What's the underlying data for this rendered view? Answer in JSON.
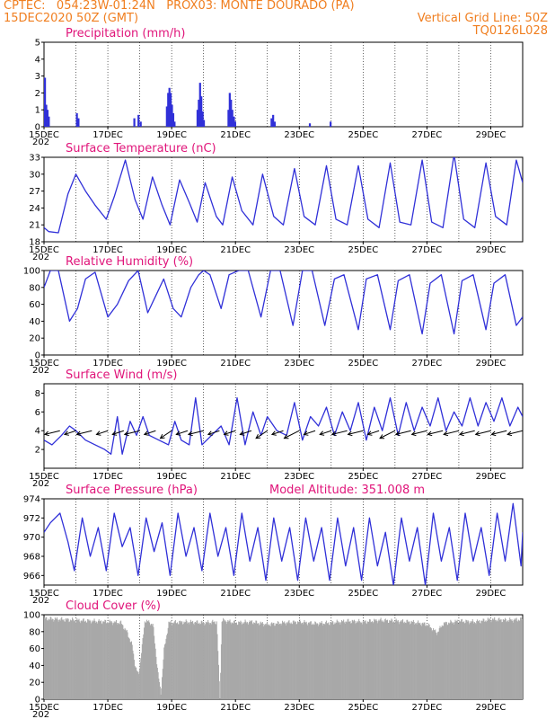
{
  "header": {
    "station": "CPTEC:   054:23W-01:24N   PROX03: MONTE DOURADO (PA)",
    "date": "15DEC2020 50Z (GMT)",
    "grid_line": "Vertical Grid Line: 50Z",
    "code": "TQ0126L028"
  },
  "x_axis": {
    "labels": [
      "15DEC",
      "17DEC",
      "19DEC",
      "21DEC",
      "23DEC",
      "25DEC",
      "27DEC",
      "29DEC"
    ],
    "year_fragment": "202"
  },
  "colors": {
    "header": "#f07e1f",
    "title": "#e0157a",
    "line": "#3030d8",
    "cloud": "#a8a8a8"
  },
  "chart_data": [
    {
      "type": "bar",
      "title": "Precipitation (mm/h)",
      "ylim": [
        0,
        5
      ],
      "yticks": [
        "0",
        "1",
        "2",
        "3",
        "4",
        "5"
      ],
      "x_range_days": [
        15,
        30
      ],
      "points": [
        [
          15.0,
          2.9
        ],
        [
          15.04,
          1.3
        ],
        [
          15.08,
          1.0
        ],
        [
          15.12,
          0.6
        ],
        [
          16.0,
          0.8
        ],
        [
          16.05,
          0.5
        ],
        [
          17.8,
          0.5
        ],
        [
          17.93,
          0.7
        ],
        [
          18.0,
          0.3
        ],
        [
          18.82,
          1.2
        ],
        [
          18.86,
          2.0
        ],
        [
          18.9,
          2.3
        ],
        [
          18.94,
          2.0
        ],
        [
          18.98,
          1.3
        ],
        [
          19.02,
          0.8
        ],
        [
          19.06,
          0.3
        ],
        [
          19.78,
          1.0
        ],
        [
          19.82,
          1.6
        ],
        [
          19.86,
          2.6
        ],
        [
          19.9,
          1.8
        ],
        [
          19.94,
          0.9
        ],
        [
          19.98,
          0.4
        ],
        [
          20.75,
          1.0
        ],
        [
          20.79,
          2.0
        ],
        [
          20.83,
          1.6
        ],
        [
          20.87,
          1.0
        ],
        [
          20.92,
          0.6
        ],
        [
          20.96,
          0.3
        ],
        [
          22.1,
          0.5
        ],
        [
          22.15,
          0.7
        ],
        [
          22.2,
          0.3
        ],
        [
          23.3,
          0.2
        ],
        [
          23.95,
          0.3
        ]
      ]
    },
    {
      "type": "line",
      "title": "Surface Temperature (nC)",
      "ylim": [
        18,
        33
      ],
      "yticks": [
        "18",
        "21",
        "24",
        "27",
        "30",
        "33"
      ],
      "x_range_days": [
        15,
        30
      ],
      "x": [
        15.0,
        15.15,
        15.45,
        15.75,
        16.0,
        16.3,
        16.6,
        16.95,
        17.2,
        17.55,
        17.85,
        18.1,
        18.4,
        18.7,
        18.95,
        19.25,
        19.55,
        19.8,
        20.05,
        20.4,
        20.6,
        20.9,
        21.2,
        21.55,
        21.85,
        22.2,
        22.5,
        22.85,
        23.15,
        23.5,
        23.85,
        24.15,
        24.5,
        24.85,
        25.15,
        25.5,
        25.85,
        26.15,
        26.5,
        26.85,
        27.15,
        27.5,
        27.85,
        28.15,
        28.5,
        28.85,
        29.15,
        29.5,
        29.8,
        30.0
      ],
      "y": [
        20.5,
        19.8,
        19.6,
        26.5,
        30.0,
        27.0,
        24.5,
        22.0,
        26.0,
        32.5,
        25.5,
        22.0,
        29.5,
        24.5,
        21.0,
        29.0,
        25.0,
        21.5,
        28.5,
        22.5,
        21.0,
        29.5,
        23.5,
        21.0,
        30.0,
        22.5,
        21.0,
        31.0,
        22.5,
        21.0,
        31.5,
        22.0,
        21.0,
        31.5,
        22.0,
        20.5,
        32.0,
        21.5,
        21.0,
        32.5,
        21.5,
        20.5,
        33.5,
        22.0,
        20.5,
        32.0,
        22.5,
        21.0,
        32.5,
        28.5
      ]
    },
    {
      "type": "line",
      "title": "Relative Humidity (%)",
      "ylim": [
        0,
        100
      ],
      "yticks": [
        "0",
        "20",
        "40",
        "60",
        "80",
        "100"
      ],
      "x_range_days": [
        15,
        30
      ],
      "x": [
        15.0,
        15.2,
        15.45,
        15.8,
        16.05,
        16.3,
        16.6,
        17.0,
        17.3,
        17.65,
        17.95,
        18.25,
        18.5,
        18.75,
        19.05,
        19.3,
        19.6,
        19.85,
        20.0,
        20.2,
        20.55,
        20.8,
        21.1,
        21.4,
        21.8,
        22.1,
        22.4,
        22.8,
        23.1,
        23.4,
        23.8,
        24.1,
        24.4,
        24.85,
        25.1,
        25.45,
        25.85,
        26.1,
        26.45,
        26.85,
        27.1,
        27.45,
        27.85,
        28.1,
        28.45,
        28.85,
        29.1,
        29.45,
        29.8,
        30.0
      ],
      "y": [
        80,
        100,
        100,
        40,
        55,
        90,
        98,
        45,
        60,
        88,
        100,
        50,
        70,
        90,
        55,
        45,
        80,
        95,
        100,
        95,
        55,
        95,
        100,
        100,
        45,
        100,
        100,
        35,
        100,
        100,
        35,
        90,
        95,
        30,
        90,
        95,
        30,
        88,
        95,
        25,
        85,
        95,
        25,
        88,
        95,
        30,
        85,
        95,
        35,
        45
      ]
    },
    {
      "type": "line",
      "title": "Surface Wind (m/s)",
      "ylim": [
        0,
        9
      ],
      "yticks": [
        "2",
        "4",
        "6",
        "8"
      ],
      "x_range_days": [
        15,
        30
      ],
      "x": [
        15.0,
        15.25,
        15.55,
        15.8,
        16.0,
        16.3,
        16.6,
        16.9,
        17.1,
        17.3,
        17.45,
        17.7,
        17.9,
        18.1,
        18.3,
        18.6,
        18.9,
        19.1,
        19.3,
        19.55,
        19.75,
        19.95,
        20.25,
        20.55,
        20.8,
        21.05,
        21.3,
        21.55,
        21.8,
        22.0,
        22.3,
        22.6,
        22.85,
        23.1,
        23.35,
        23.6,
        23.85,
        24.1,
        24.35,
        24.6,
        24.85,
        25.1,
        25.35,
        25.6,
        25.85,
        26.1,
        26.35,
        26.6,
        26.85,
        27.1,
        27.35,
        27.6,
        27.85,
        28.1,
        28.35,
        28.6,
        28.85,
        29.1,
        29.35,
        29.6,
        29.85,
        30.0
      ],
      "y": [
        3.0,
        2.5,
        3.5,
        4.5,
        4.0,
        3.0,
        2.5,
        2.0,
        1.5,
        5.5,
        1.5,
        5.0,
        3.5,
        5.5,
        3.5,
        3.0,
        2.5,
        5.0,
        3.0,
        2.5,
        7.5,
        2.5,
        3.5,
        4.5,
        2.5,
        7.5,
        2.5,
        6.0,
        3.5,
        5.5,
        4.0,
        3.5,
        7.0,
        3.0,
        5.5,
        4.5,
        6.5,
        3.5,
        6.0,
        4.0,
        7.0,
        3.0,
        6.5,
        4.0,
        7.5,
        3.5,
        7.0,
        4.0,
        6.5,
        4.5,
        7.5,
        4.0,
        6.0,
        4.5,
        7.5,
        4.5,
        7.0,
        5.0,
        7.5,
        4.5,
        6.5,
        5.5
      ],
      "arrows_x": [
        15.0,
        15.5,
        16.0,
        16.5,
        17.0,
        17.5,
        18.0,
        18.5,
        19.0,
        19.5,
        20.0,
        20.5,
        21.0,
        21.5,
        22.0,
        22.5,
        23.0,
        23.5,
        24.0,
        24.5,
        25.0,
        25.5,
        26.0,
        26.5,
        27.0,
        27.5,
        28.0,
        28.5,
        29.0,
        29.5,
        30.0
      ],
      "arrows_u": [
        -4,
        -4,
        -3,
        -4,
        -3,
        -3,
        -4,
        -3,
        -3,
        -3,
        -4,
        -3,
        -3,
        -3,
        -3,
        -3,
        -4,
        -3,
        -3,
        -4,
        -4,
        -3,
        -4,
        -4,
        -4,
        -4,
        -4,
        -4,
        -4,
        -4,
        -4
      ],
      "arrows_v": [
        -1,
        -1,
        -1,
        -1,
        -1,
        -1,
        -1,
        -1,
        -2,
        -1,
        -1,
        -1,
        -1,
        -1,
        -2,
        -1,
        -2,
        -1,
        -1,
        -1,
        -1,
        -1,
        -2,
        -1,
        -1,
        -1,
        -1,
        -1,
        -1,
        -1,
        -1
      ]
    },
    {
      "type": "line",
      "title": "Surface Pressure (hPa)",
      "annotation": "Model Altitude: 351.008  m",
      "ylim": [
        965,
        974
      ],
      "yticks": [
        "966",
        "968",
        "970",
        "972",
        "974"
      ],
      "x_range_days": [
        15,
        30
      ],
      "x": [
        15.0,
        15.2,
        15.5,
        15.75,
        15.95,
        16.2,
        16.45,
        16.7,
        16.95,
        17.2,
        17.45,
        17.7,
        17.95,
        18.2,
        18.45,
        18.7,
        18.95,
        19.2,
        19.45,
        19.7,
        19.95,
        20.2,
        20.45,
        20.7,
        20.95,
        21.2,
        21.45,
        21.7,
        21.95,
        22.2,
        22.45,
        22.7,
        22.95,
        23.2,
        23.45,
        23.7,
        23.95,
        24.2,
        24.45,
        24.7,
        24.95,
        25.2,
        25.45,
        25.7,
        25.95,
        26.2,
        26.45,
        26.7,
        26.95,
        27.2,
        27.45,
        27.7,
        27.95,
        28.2,
        28.45,
        28.7,
        28.95,
        29.2,
        29.45,
        29.7,
        29.95,
        30.0
      ],
      "y": [
        970.5,
        971.5,
        972.5,
        969.5,
        966.5,
        972.0,
        968.0,
        971.0,
        966.5,
        972.5,
        969.0,
        971.0,
        966.0,
        972.0,
        968.5,
        971.5,
        966.0,
        972.5,
        968.0,
        971.0,
        966.5,
        972.5,
        968.0,
        971.0,
        966.0,
        972.5,
        967.5,
        971.0,
        965.5,
        972.0,
        967.5,
        971.0,
        965.5,
        972.0,
        967.5,
        971.0,
        965.5,
        972.0,
        967.0,
        971.0,
        965.5,
        972.0,
        967.0,
        970.5,
        965.0,
        972.0,
        967.5,
        971.0,
        965.0,
        972.5,
        967.5,
        971.0,
        965.5,
        972.5,
        967.5,
        971.0,
        966.0,
        972.5,
        967.5,
        973.5,
        967.0,
        970.5
      ]
    },
    {
      "type": "bar",
      "title": "Cloud Cover (%)",
      "ylim": [
        0,
        100
      ],
      "yticks": [
        "0",
        "20",
        "40",
        "60",
        "80",
        "100"
      ],
      "x_range_days": [
        15,
        30
      ],
      "profile": [
        [
          15.0,
          97
        ],
        [
          15.5,
          96
        ],
        [
          16.0,
          95
        ],
        [
          16.5,
          94
        ],
        [
          17.0,
          93
        ],
        [
          17.4,
          92
        ],
        [
          17.6,
          80
        ],
        [
          17.75,
          65
        ],
        [
          17.85,
          40
        ],
        [
          17.95,
          30
        ],
        [
          18.05,
          60
        ],
        [
          18.15,
          95
        ],
        [
          18.4,
          90
        ],
        [
          18.55,
          35
        ],
        [
          18.65,
          8
        ],
        [
          18.75,
          60
        ],
        [
          18.9,
          92
        ],
        [
          19.5,
          93
        ],
        [
          20.0,
          92
        ],
        [
          20.4,
          93
        ],
        [
          20.5,
          2
        ],
        [
          20.56,
          95
        ],
        [
          21.0,
          92
        ],
        [
          21.5,
          93
        ],
        [
          22.0,
          90
        ],
        [
          22.5,
          92
        ],
        [
          23.0,
          93
        ],
        [
          23.5,
          91
        ],
        [
          24.0,
          92
        ],
        [
          24.5,
          94
        ],
        [
          25.0,
          93
        ],
        [
          25.5,
          95
        ],
        [
          26.0,
          94
        ],
        [
          26.5,
          93
        ],
        [
          27.0,
          90
        ],
        [
          27.3,
          80
        ],
        [
          27.5,
          91
        ],
        [
          28.0,
          94
        ],
        [
          28.5,
          93
        ],
        [
          29.0,
          96
        ],
        [
          29.5,
          95
        ],
        [
          30.0,
          96
        ]
      ]
    }
  ]
}
